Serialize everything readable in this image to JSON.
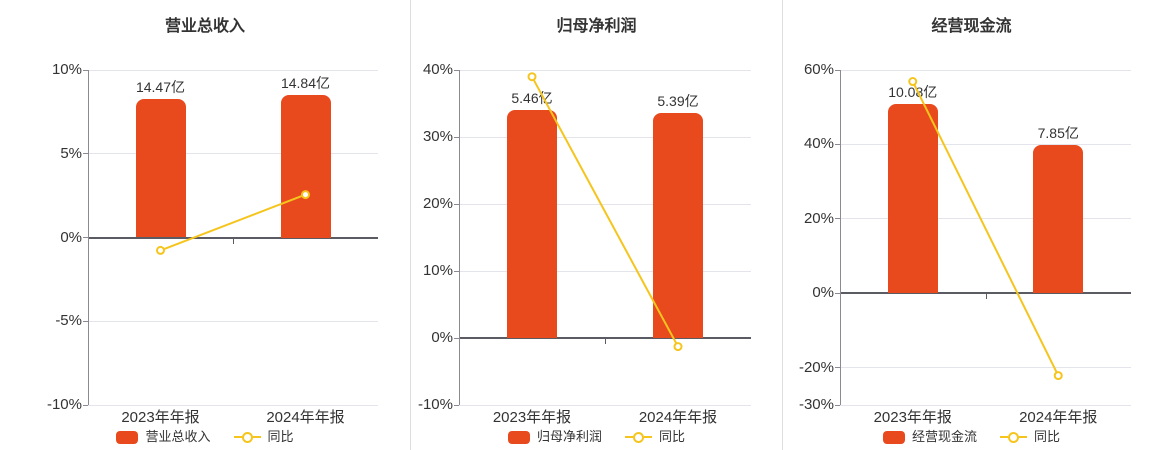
{
  "colors": {
    "bar": "#E8491D",
    "line": "#F5C51E",
    "marker_fill": "#FFFFFF",
    "grid": "#E4E4EC",
    "zero_line": "#5B5B63",
    "axis_line": "#8A8A92",
    "text": "#333333",
    "divider": "#DDDDDD",
    "background": "#FFFFFF"
  },
  "chart_data": [
    {
      "type": "bar+line",
      "title": "营业总收入",
      "categories": [
        "2023年年报",
        "2024年年报"
      ],
      "bar_series": {
        "name": "营业总收入",
        "unit": "亿",
        "values": [
          14.47,
          14.84
        ],
        "labels": [
          "14.47亿",
          "14.84亿"
        ]
      },
      "line_series": {
        "name": "同比",
        "unit": "%",
        "values": [
          -0.77,
          2.56
        ]
      },
      "y_axis": {
        "min": -10,
        "max": 10,
        "ticks": [
          10,
          5,
          0,
          -5,
          -10
        ],
        "tick_suffix": "%"
      },
      "grid": true,
      "legend_position": "bottom",
      "legend": [
        "营业总收入",
        "同比"
      ]
    },
    {
      "type": "bar+line",
      "title": "归母净利润",
      "categories": [
        "2023年年报",
        "2024年年报"
      ],
      "bar_series": {
        "name": "归母净利润",
        "unit": "亿",
        "values": [
          5.46,
          5.39
        ],
        "labels": [
          "5.46亿",
          "5.39亿"
        ]
      },
      "line_series": {
        "name": "同比",
        "unit": "%",
        "values": [
          39.0,
          -1.28
        ]
      },
      "y_axis": {
        "min": -10,
        "max": 40,
        "ticks": [
          40,
          30,
          20,
          10,
          0,
          -10
        ],
        "tick_suffix": "%"
      },
      "grid": true,
      "legend_position": "bottom",
      "legend": [
        "归母净利润",
        "同比"
      ]
    },
    {
      "type": "bar+line",
      "title": "经营现金流",
      "categories": [
        "2023年年报",
        "2024年年报"
      ],
      "bar_series": {
        "name": "经营现金流",
        "unit": "亿",
        "values": [
          10.08,
          7.85
        ],
        "labels": [
          "10.08亿",
          "7.85亿"
        ]
      },
      "line_series": {
        "name": "同比",
        "unit": "%",
        "values": [
          56.9,
          -22.1
        ]
      },
      "y_axis": {
        "min": -30,
        "max": 60,
        "ticks": [
          60,
          40,
          20,
          0,
          -20,
          -30
        ],
        "tick_suffix": "%"
      },
      "grid": true,
      "legend_position": "bottom",
      "legend": [
        "经营现金流",
        "同比"
      ]
    }
  ]
}
